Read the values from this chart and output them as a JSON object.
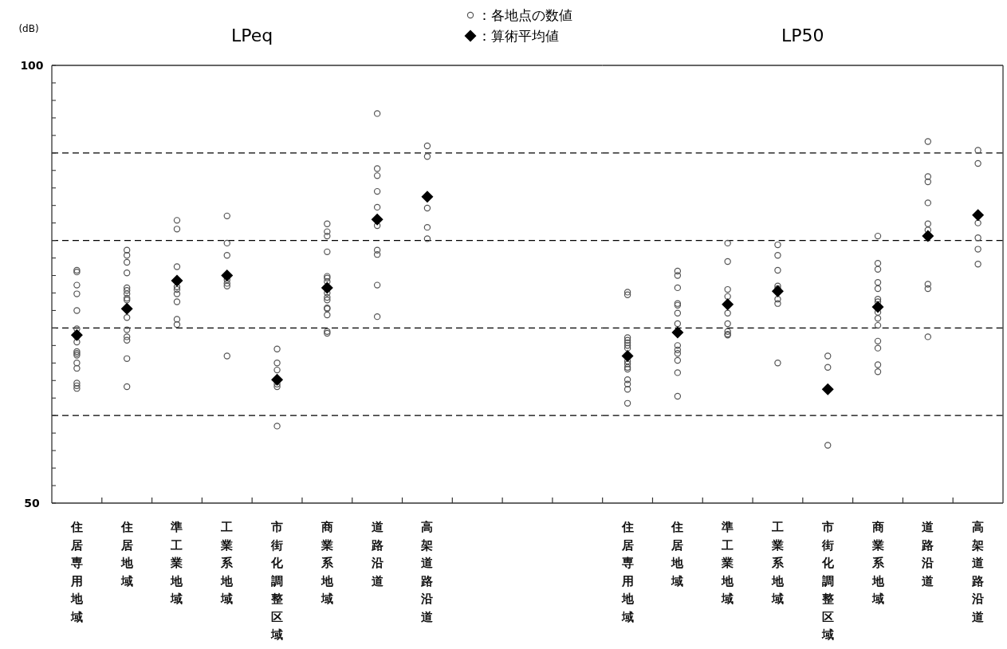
{
  "chart_data": [
    {
      "type": "scatter",
      "title": "LPeq",
      "ylabel": "(dB)",
      "legend": "top",
      "categories": [
        "住居専用地域",
        "住居地域",
        "準工業地域",
        "工業系地域",
        "市街化調整区域",
        "商業系地域",
        "道路沿道",
        "高架道路沿道",
        null,
        null,
        null
      ],
      "ylim": [
        50,
        100
      ],
      "yticks": [
        50,
        {
          "value": 52,
          "label": null
        },
        {
          "value": 54,
          "label": null
        },
        {
          "value": 56,
          "label": null
        },
        {
          "value": 58,
          "label": null
        },
        {
          "value": 60,
          "label": null
        },
        {
          "value": 62,
          "label": null
        },
        {
          "value": 64,
          "label": null
        },
        {
          "value": 66,
          "label": null
        },
        {
          "value": 68,
          "label": null
        },
        {
          "value": 70,
          "label": null
        },
        {
          "value": 72,
          "label": null
        },
        {
          "value": 74,
          "label": null
        },
        {
          "value": 76,
          "label": null
        },
        {
          "value": 78,
          "label": null
        },
        {
          "value": 80,
          "label": null
        },
        {
          "value": 82,
          "label": null
        },
        {
          "value": 84,
          "label": null
        },
        {
          "value": 86,
          "label": null
        },
        {
          "value": 88,
          "label": null
        },
        {
          "value": 90,
          "label": null
        },
        {
          "value": 92,
          "label": null
        },
        {
          "value": 94,
          "label": null
        },
        {
          "value": 96,
          "label": null
        },
        {
          "value": 98,
          "label": null
        },
        100
      ],
      "ref_lines": [
        {
          "axis": "y",
          "value": 60,
          "color": "#000000",
          "line_style": "dashed"
        },
        {
          "axis": "y",
          "value": 70,
          "color": "#000000",
          "line_style": "dashed"
        },
        {
          "axis": "y",
          "value": 80,
          "color": "#000000",
          "line_style": "dashed"
        },
        {
          "axis": "y",
          "value": 90,
          "color": "#000000",
          "line_style": "dashed"
        }
      ],
      "series": [
        {
          "name": "：各地点の数値",
          "marker": "circle",
          "color": "#555555",
          "x": [
            "住居専用地域",
            "住居専用地域",
            "住居専用地域",
            "住居専用地域",
            "住居専用地域",
            "住居専用地域",
            "住居専用地域",
            "住居専用地域",
            "住居専用地域",
            "住居専用地域",
            "住居専用地域",
            "住居専用地域",
            "住居専用地域",
            "住居専用地域",
            "住居専用地域",
            "住居専用地域",
            "住居地域",
            "住居地域",
            "住居地域",
            "住居地域",
            "住居地域",
            "住居地域",
            "住居地域",
            "住居地域",
            "住居地域",
            "住居地域",
            "住居地域",
            "住居地域",
            "住居地域",
            "住居地域",
            "住居地域",
            "準工業地域",
            "準工業地域",
            "準工業地域",
            "準工業地域",
            "準工業地域",
            "準工業地域",
            "準工業地域",
            "準工業地域",
            "準工業地域",
            "工業系地域",
            "工業系地域",
            "工業系地域",
            "工業系地域",
            "工業系地域",
            "工業系地域",
            "工業系地域",
            "市街化調整区域",
            "市街化調整区域",
            "市街化調整区域",
            "市街化調整区域",
            "市街化調整区域",
            "市街化調整区域",
            "商業系地域",
            "商業系地域",
            "商業系地域",
            "商業系地域",
            "商業系地域",
            "商業系地域",
            "商業系地域",
            "商業系地域",
            "商業系地域",
            "商業系地域",
            "商業系地域",
            "商業系地域",
            "商業系地域",
            "商業系地域",
            "商業系地域",
            "道路沿道",
            "道路沿道",
            "道路沿道",
            "道路沿道",
            "道路沿道",
            "道路沿道",
            "道路沿道",
            "道路沿道",
            "道路沿道",
            "道路沿道",
            "高架道路沿道",
            "高架道路沿道",
            "高架道路沿道",
            "高架道路沿道",
            "高架道路沿道"
          ],
          "values": [
            76.6,
            76.4,
            74.9,
            73.9,
            72.0,
            69.9,
            69.0,
            68.4,
            67.3,
            67.1,
            66.9,
            66.0,
            65.4,
            63.7,
            63.4,
            63.1,
            78.9,
            78.3,
            77.5,
            76.3,
            74.6,
            74.3,
            73.9,
            73.4,
            73.2,
            71.2,
            69.8,
            69.0,
            68.6,
            66.5,
            63.3,
            82.3,
            81.3,
            77.0,
            74.7,
            74.4,
            73.9,
            73.0,
            71.0,
            70.4,
            82.8,
            79.7,
            78.3,
            75.5,
            75.1,
            74.8,
            66.8,
            67.6,
            66.0,
            65.2,
            63.6,
            63.3,
            58.8,
            81.9,
            81.0,
            80.5,
            78.7,
            75.9,
            75.7,
            75.3,
            74.0,
            73.5,
            73.2,
            72.3,
            72.2,
            71.5,
            69.6,
            69.4,
            94.5,
            88.2,
            87.4,
            85.6,
            83.8,
            81.7,
            78.9,
            78.4,
            74.9,
            71.3,
            90.8,
            89.6,
            83.7,
            81.5,
            80.2
          ]
        },
        {
          "name": "：算術平均値",
          "marker": "diamond",
          "color": "#000000",
          "values": [
            69.2,
            72.2,
            75.4,
            76.0,
            64.1,
            74.6,
            82.4,
            85.0,
            null,
            null,
            null
          ]
        }
      ]
    },
    {
      "type": "scatter",
      "title": "LP50",
      "tick_labels": "x",
      "categories": [
        "住居専用地域",
        "住居地域",
        "準工業地域",
        "工業系地域",
        "市街化調整区域",
        "商業系地域",
        "道路沿道",
        "高架道路沿道"
      ],
      "ylim": [
        50,
        100
      ],
      "ref_lines": [
        {
          "axis": "y",
          "value": 60,
          "color": "#000000",
          "line_style": "dashed"
        },
        {
          "axis": "y",
          "value": 70,
          "color": "#000000",
          "line_style": "dashed"
        },
        {
          "axis": "y",
          "value": 80,
          "color": "#000000",
          "line_style": "dashed"
        },
        {
          "axis": "y",
          "value": 90,
          "color": "#000000",
          "line_style": "dashed"
        }
      ],
      "series": [
        {
          "marker": "circle",
          "color": "#555555",
          "x": [
            "住居専用地域",
            "住居専用地域",
            "住居専用地域",
            "住居専用地域",
            "住居専用地域",
            "住居専用地域",
            "住居専用地域",
            "住居専用地域",
            "住居専用地域",
            "住居専用地域",
            "住居専用地域",
            "住居専用地域",
            "住居専用地域",
            "住居専用地域",
            "住居専用地域",
            "住居地域",
            "住居地域",
            "住居地域",
            "住居地域",
            "住居地域",
            "住居地域",
            "住居地域",
            "住居地域",
            "住居地域",
            "住居地域",
            "住居地域",
            "住居地域",
            "住居地域",
            "準工業地域",
            "準工業地域",
            "準工業地域",
            "準工業地域",
            "準工業地域",
            "準工業地域",
            "準工業地域",
            "準工業地域",
            "準工業地域",
            "工業系地域",
            "工業系地域",
            "工業系地域",
            "工業系地域",
            "工業系地域",
            "工業系地域",
            "工業系地域",
            "工業系地域",
            "市街化調整区域",
            "市街化調整区域",
            "市街化調整区域",
            "商業系地域",
            "商業系地域",
            "商業系地域",
            "商業系地域",
            "商業系地域",
            "商業系地域",
            "商業系地域",
            "商業系地域",
            "商業系地域",
            "商業系地域",
            "商業系地域",
            "商業系地域",
            "商業系地域",
            "商業系地域",
            "道路沿道",
            "道路沿道",
            "道路沿道",
            "道路沿道",
            "道路沿道",
            "道路沿道",
            "道路沿道",
            "道路沿道",
            "道路沿道",
            "高架道路沿道",
            "高架道路沿道",
            "高架道路沿道",
            "高架道路沿道",
            "高架道路沿道",
            "高架道路沿道"
          ],
          "values": [
            74.1,
            73.8,
            68.9,
            68.6,
            68.3,
            68.0,
            67.7,
            66.2,
            65.9,
            65.5,
            65.3,
            64.1,
            63.6,
            63.0,
            61.4,
            76.5,
            76.0,
            74.6,
            72.8,
            72.6,
            71.7,
            70.5,
            68.0,
            67.5,
            67.1,
            66.3,
            64.9,
            62.2,
            79.7,
            77.6,
            74.4,
            73.6,
            71.7,
            70.5,
            69.6,
            69.3,
            69.2,
            79.5,
            78.3,
            76.6,
            74.8,
            74.5,
            73.3,
            72.8,
            66.0,
            66.8,
            65.5,
            56.6,
            80.5,
            77.4,
            76.7,
            75.2,
            74.5,
            73.3,
            73.0,
            71.8,
            71.1,
            70.3,
            68.5,
            67.7,
            65.8,
            65.0,
            91.3,
            87.3,
            86.7,
            84.3,
            81.9,
            81.2,
            75.0,
            74.5,
            69.0,
            90.3,
            88.8,
            82.0,
            80.3,
            79.0,
            77.3
          ]
        },
        {
          "marker": "diamond",
          "color": "#000000",
          "values": [
            66.8,
            69.5,
            72.7,
            74.2,
            63.0,
            72.4,
            80.5,
            82.9
          ]
        }
      ]
    }
  ]
}
